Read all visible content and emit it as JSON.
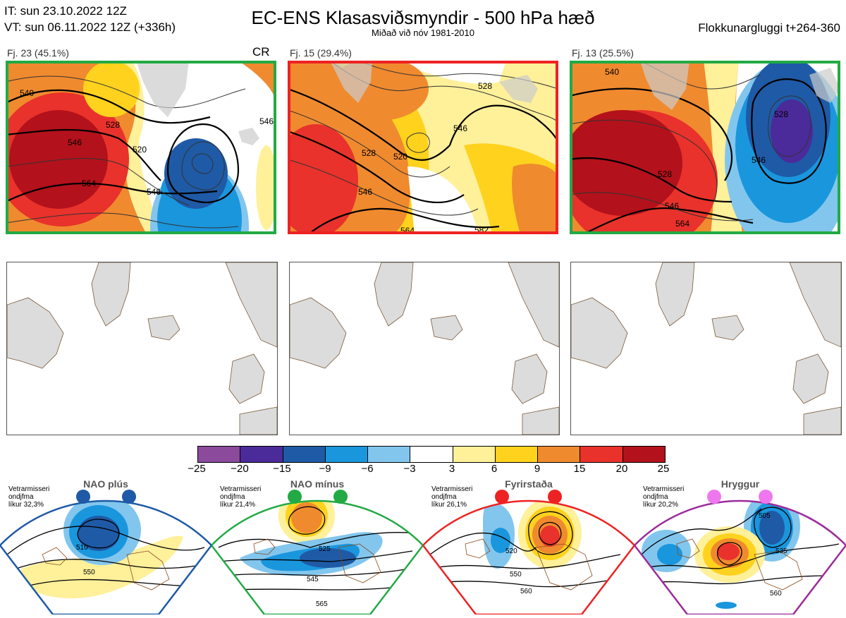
{
  "header": {
    "it_line": "IT: sun 23.10.2022 12Z",
    "vt_line": "VT: sun 06.11.2022 12Z  (+336h)",
    "title": "EC-ENS Klasasviðsmyndir - 500 hPa hæð",
    "subtitle": "Miðað við nóv 1981-2010",
    "window": "Flokkunargluggi t+264-360"
  },
  "clusters": [
    {
      "label": "Fj. 23 (45.1%)",
      "border_color": "#22aa44",
      "contours": [
        "546",
        "528",
        "520",
        "546",
        "564",
        "546",
        "540"
      ]
    },
    {
      "label": "Fj. 15 (29.4%)",
      "border_color": "#ee2222",
      "contours": [
        "520",
        "528",
        "546",
        "564",
        "582",
        "546",
        "528"
      ]
    },
    {
      "label": "Fj. 13 (25.5%)",
      "border_color": "#22aa44",
      "contours": [
        "528",
        "546",
        "564",
        "546",
        "528",
        "540"
      ]
    }
  ],
  "cr_label": "CR",
  "colorbar": {
    "colors": [
      "#8c4a9c",
      "#4b2a9a",
      "#1f5aa6",
      "#1a96dd",
      "#82c6ee",
      "#ffffff",
      "#fff09a",
      "#ffd21e",
      "#f08a2e",
      "#e8322b",
      "#b3111b"
    ],
    "ticks": [
      "−25",
      "−20",
      "−15",
      "−9",
      "−6",
      "−3",
      "3",
      "6",
      "9",
      "15",
      "20",
      "25"
    ]
  },
  "regimes": [
    {
      "name": "NAO plús",
      "note": [
        "Vetrarmisseri",
        "ondjfma",
        "líkur 32,3%"
      ],
      "color": "#1f5aa6",
      "contours": [
        "510",
        "550"
      ]
    },
    {
      "name": "NAO mínus",
      "note": [
        "Vetrarmisseri",
        "ondjfma",
        "líkur 21,4%"
      ],
      "color": "#22aa44",
      "contours": [
        "525",
        "545",
        "565"
      ]
    },
    {
      "name": "Fyrirstaða",
      "note": [
        "Vetrarmisseri",
        "ondjfma",
        "líkur 26,1%"
      ],
      "color": "#ee2222",
      "contours": [
        "520",
        "550",
        "560"
      ]
    },
    {
      "name": "Hryggur",
      "note": [
        "Vetrarmisseri",
        "ondjfma",
        "líkur 20,2%"
      ],
      "color": "#9b2b9b",
      "contours": [
        "505",
        "535",
        "560"
      ]
    }
  ]
}
